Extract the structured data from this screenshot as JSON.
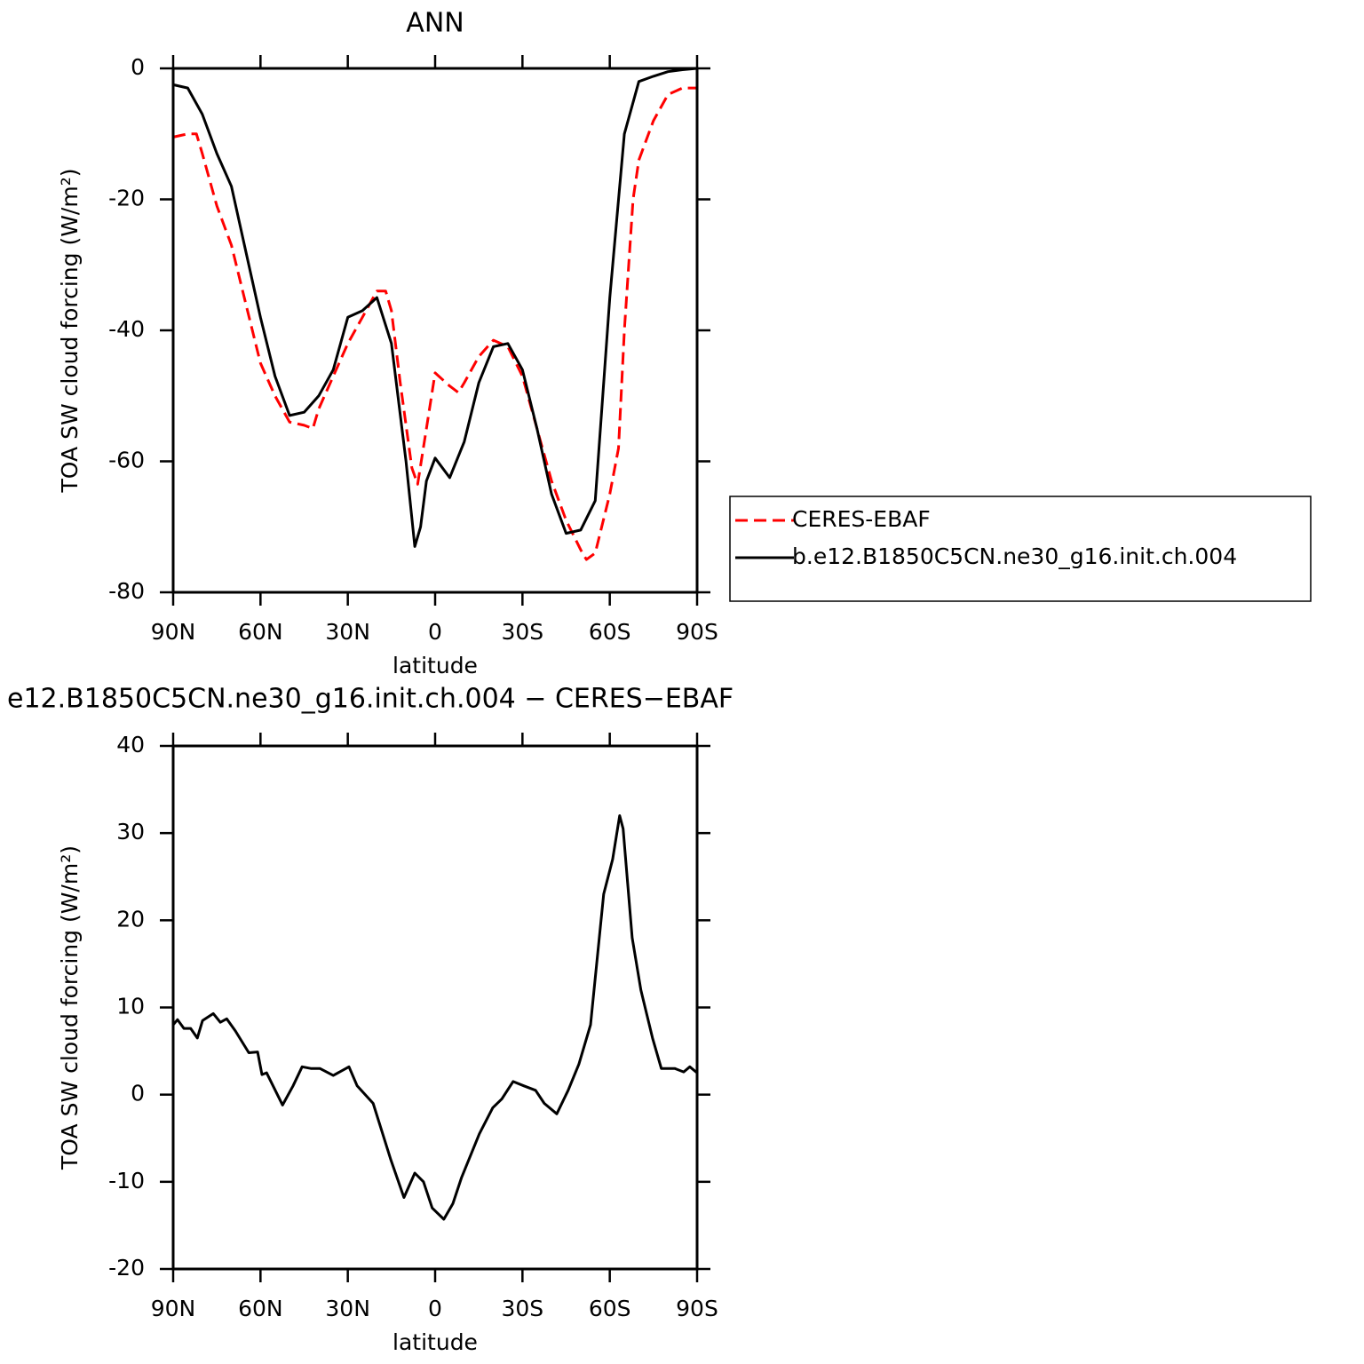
{
  "chart_data": [
    {
      "type": "line",
      "title": "ANN",
      "xlabel": "latitude",
      "ylabel": "TOA SW cloud forcing (W/m²)",
      "xlim": [
        90,
        -90
      ],
      "xticks": [
        {
          "value": 90,
          "label": "90N"
        },
        {
          "value": 60,
          "label": "60N"
        },
        {
          "value": 30,
          "label": "30N"
        },
        0,
        {
          "value": -30,
          "label": "30S"
        },
        {
          "value": -60,
          "label": "60S"
        },
        {
          "value": -90,
          "label": "90S"
        }
      ],
      "ylim": [
        -80,
        0
      ],
      "yticks": [
        -80,
        -60,
        -40,
        -20,
        0
      ],
      "legend": "right",
      "series": [
        {
          "name": "CERES-EBAF",
          "color": "#ff0000",
          "style": "dashed",
          "x": [
            90,
            85,
            82,
            80,
            75,
            70,
            65,
            60,
            55,
            50,
            45,
            42,
            40,
            35,
            30,
            25,
            20,
            17,
            15,
            12,
            8,
            6,
            3,
            0,
            -5,
            -8,
            -10,
            -15,
            -20,
            -25,
            -30,
            -35,
            -40,
            -45,
            -50,
            -52,
            -55,
            -60,
            -63,
            -65,
            -68,
            -70,
            -75,
            -80,
            -85,
            -90
          ],
          "values": [
            -10.5,
            -10,
            -10,
            -13,
            -21,
            -27,
            -36,
            -45,
            -50,
            -54,
            -54.5,
            -55,
            -52,
            -47,
            -42,
            -38,
            -34,
            -34,
            -37,
            -48,
            -61,
            -63.5,
            -55,
            -46.5,
            -48.5,
            -49.5,
            -48,
            -44,
            -41.5,
            -42.5,
            -47,
            -55,
            -63,
            -69,
            -73.5,
            -75,
            -74,
            -65,
            -58,
            -40,
            -20,
            -14,
            -8,
            -4,
            -3,
            -3
          ]
        },
        {
          "name": "b.e12.B1850C5CN.ne30_g16.init.ch.004",
          "color": "#000000",
          "style": "solid",
          "x": [
            90,
            85,
            80,
            75,
            70,
            65,
            60,
            55,
            50,
            45,
            40,
            35,
            30,
            25,
            20,
            15,
            10,
            7,
            5,
            3,
            0,
            -5,
            -10,
            -15,
            -20,
            -25,
            -30,
            -35,
            -40,
            -45,
            -50,
            -55,
            -60,
            -65,
            -70,
            -75,
            -80,
            -85,
            -90
          ],
          "values": [
            -2.5,
            -3,
            -7,
            -13,
            -18,
            -28,
            -38,
            -47,
            -53,
            -52.5,
            -50,
            -46,
            -38,
            -37,
            -35,
            -42,
            -60,
            -73,
            -70,
            -63,
            -59.5,
            -62.5,
            -57,
            -48,
            -42.5,
            -42,
            -46,
            -55,
            -65,
            -71,
            -70.5,
            -66,
            -35,
            -10,
            -2,
            -1.2,
            -0.5,
            -0.2,
            0
          ]
        }
      ]
    },
    {
      "type": "line",
      "title": "e12.B1850C5CN.ne30_g16.init.ch.004 − CERES−EBAF",
      "xlabel": "latitude",
      "ylabel": "TOA SW cloud forcing (W/m²)",
      "xlim": [
        90,
        -90
      ],
      "xticks": [
        {
          "value": 90,
          "label": "90N"
        },
        {
          "value": 60,
          "label": "60N"
        },
        {
          "value": 30,
          "label": "30N"
        },
        0,
        {
          "value": -30,
          "label": "30S"
        },
        {
          "value": -60,
          "label": "60S"
        },
        {
          "value": -90,
          "label": "90S"
        }
      ],
      "ylim": [
        -20,
        40
      ],
      "yticks": [
        -20,
        -10,
        0,
        10,
        20,
        30,
        40
      ],
      "color": "#000000",
      "x": [
        90,
        88.5,
        86.3,
        84,
        81.7,
        79.9,
        76.2,
        73.8,
        71.6,
        68.6,
        64,
        61,
        59.5,
        57.9,
        52.4,
        48.8,
        45.7,
        42.7,
        39.6,
        35,
        29.6,
        26.8,
        21.3,
        15.2,
        10.7,
        7,
        4,
        1,
        -3,
        -6.1,
        -9.1,
        -15.2,
        -19.8,
        -22.9,
        -26.8,
        -30.5,
        -34.5,
        -37.5,
        -41.8,
        -45.7,
        -49.4,
        -53.4,
        -57.9,
        -61,
        -63.4,
        -64.6,
        -67.7,
        -70.7,
        -74.7,
        -77.7,
        -82.3,
        -85.4,
        -87.5,
        -90
      ],
      "values": [
        8,
        8.6,
        7.6,
        7.6,
        6.5,
        8.5,
        9.3,
        8.3,
        8.7,
        7.3,
        4.8,
        4.9,
        2.3,
        2.5,
        -1.2,
        1,
        3.2,
        3,
        3,
        2.2,
        3.2,
        1,
        -1,
        -7.5,
        -11.8,
        -9,
        -10,
        -13,
        -14.3,
        -12.5,
        -9.5,
        -4.5,
        -1.5,
        -0.5,
        1.5,
        1,
        0.5,
        -1,
        -2.2,
        0.5,
        3.5,
        8,
        23,
        27,
        32,
        30.5,
        18,
        12,
        6.5,
        3,
        3,
        2.6,
        3.2,
        2.5
      ]
    }
  ]
}
